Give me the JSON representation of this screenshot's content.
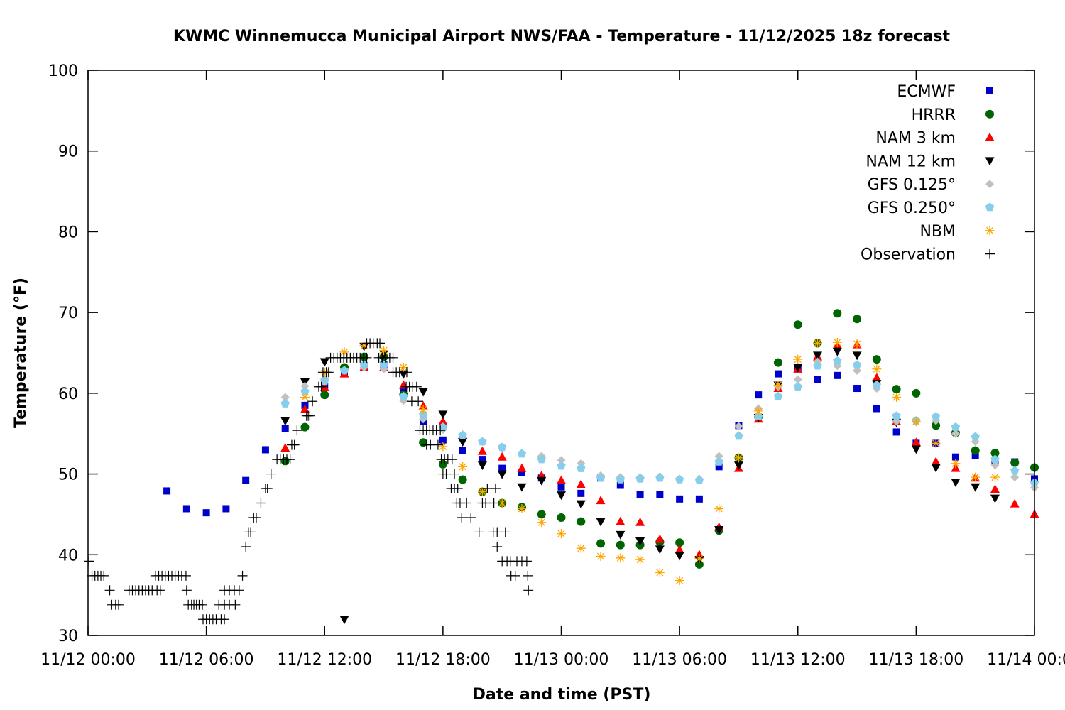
{
  "chart_data": {
    "type": "scatter",
    "title": "KWMC Winnemucca Municipal Airport NWS/FAA - Temperature - 11/12/2025 18z forecast",
    "xlabel": "Date and time (PST)",
    "ylabel": "Temperature (°F)",
    "xlim": [
      "11/12 00:00",
      "11/14 00:00"
    ],
    "ylim": [
      30,
      100
    ],
    "grid": false,
    "legend_position": "top-right",
    "x_ticks": [
      "11/12 00:00",
      "11/12 06:00",
      "11/12 12:00",
      "11/12 18:00",
      "11/13 00:00",
      "11/13 06:00",
      "11/13 12:00",
      "11/13 18:00",
      "11/14 00:00"
    ],
    "y_ticks": [
      "30",
      "40",
      "50",
      "60",
      "70",
      "80",
      "90",
      "100"
    ],
    "series": [
      {
        "name": "ECMWF",
        "marker": "square",
        "color": "#0000cc",
        "start": "11/12 04:00",
        "step_hours": 1,
        "values": [
          47.9,
          45.7,
          45.2,
          45.7,
          49.2,
          53.0,
          55.6,
          58.5,
          60.8,
          62.5,
          63.4,
          63.5,
          60.3,
          56.5,
          54.2,
          52.9,
          51.8,
          50.7,
          50.2,
          49.5,
          48.4,
          47.6,
          49.5,
          48.6,
          47.5,
          47.5,
          46.9,
          46.9,
          50.9,
          56.0,
          59.8,
          62.4,
          63.0,
          61.7,
          62.2,
          60.6,
          58.1,
          55.2,
          53.8,
          53.8,
          52.1,
          52.3,
          51.6,
          51.5,
          49.4
        ]
      },
      {
        "name": "HRRR",
        "marker": "circle",
        "color": "#006400",
        "start": "11/12 10:00",
        "step_hours": 1,
        "values": [
          51.6,
          55.8,
          59.8,
          63.2,
          64.5,
          64.5,
          59.8,
          53.9,
          51.2,
          49.3,
          47.8,
          46.4,
          45.9,
          45.0,
          44.6,
          44.1,
          41.4,
          41.2,
          41.2,
          41.6,
          41.5,
          38.8,
          43.0,
          52.0,
          57.1,
          63.8,
          68.5,
          66.2,
          69.9,
          69.2,
          64.2,
          60.5,
          60.0,
          56.0,
          55.1,
          52.9,
          52.6,
          51.4,
          50.8
        ]
      },
      {
        "name": "NAM 3 km",
        "marker": "triangle-up",
        "color": "#ff0000",
        "start": "11/12 10:00",
        "step_hours": 1,
        "values": [
          53.2,
          58.0,
          60.7,
          62.4,
          63.2,
          63.2,
          61.0,
          58.4,
          56.5,
          54.8,
          52.8,
          52.1,
          50.7,
          49.8,
          49.2,
          48.7,
          46.7,
          44.1,
          44.0,
          41.9,
          40.6,
          40.0,
          43.4,
          50.7,
          56.8,
          60.6,
          63.0,
          64.5,
          65.9,
          66.0,
          61.9,
          56.5,
          53.9,
          51.5,
          50.7,
          49.5,
          48.1,
          46.3,
          45.0
        ]
      },
      {
        "name": "NAM 12 km",
        "marker": "triangle-down",
        "color": "#000000",
        "start": "11/12 10:00",
        "step_hours": 1,
        "values": [
          56.6,
          61.4,
          63.9,
          32.0,
          65.8,
          64.9,
          62.4,
          60.2,
          57.4,
          54.0,
          51.1,
          50.0,
          48.4,
          49.2,
          47.4,
          46.3,
          44.1,
          42.5,
          41.7,
          40.7,
          39.9,
          39.4,
          43.1,
          51.1,
          57.0,
          61.0,
          63.2,
          64.7,
          65.2,
          64.7,
          61.2,
          56.4,
          53.1,
          50.8,
          49.0,
          48.4,
          47.0,
          null,
          null
        ]
      },
      {
        "name": "GFS 0.125°",
        "marker": "diamond",
        "color": "#c0c0c0",
        "start": "11/12 10:00",
        "step_hours": 1,
        "values": [
          59.5,
          60.9,
          61.8,
          62.8,
          63.2,
          63.0,
          59.1,
          56.8,
          55.5,
          54.8,
          54.0,
          53.2,
          52.6,
          52.2,
          51.7,
          51.3,
          49.8,
          49.6,
          49.6,
          49.7,
          49.4,
          49.4,
          52.2,
          55.9,
          58.1,
          60.8,
          61.7,
          63.9,
          63.4,
          62.8,
          60.6,
          56.5,
          56.5,
          56.6,
          55.0,
          54.0,
          51.1,
          49.6,
          48.3
        ]
      },
      {
        "name": "GFS 0.250°",
        "marker": "pentagon",
        "color": "#87ceeb",
        "start": "11/12 10:00",
        "step_hours": 1,
        "values": [
          58.7,
          60.2,
          61.5,
          62.8,
          63.5,
          63.5,
          59.6,
          57.3,
          55.8,
          54.8,
          54.0,
          53.3,
          52.5,
          51.8,
          51.0,
          50.7,
          49.5,
          49.3,
          49.4,
          49.5,
          49.3,
          49.2,
          51.5,
          54.7,
          57.1,
          59.6,
          60.8,
          63.4,
          64.0,
          63.5,
          61.0,
          57.2,
          56.6,
          57.1,
          55.8,
          54.6,
          51.8,
          50.4,
          48.9
        ]
      },
      {
        "name": "NBM",
        "marker": "asterisk",
        "color": "#ffa500",
        "start": "11/12 10:00",
        "step_hours": 1,
        "values": [
          null,
          59.5,
          62.5,
          65.1,
          65.9,
          65.3,
          63.2,
          58.0,
          53.4,
          50.9,
          47.8,
          46.4,
          45.7,
          44.0,
          42.6,
          40.8,
          39.8,
          39.6,
          39.4,
          37.8,
          36.8,
          39.5,
          45.7,
          52.0,
          57.8,
          61.0,
          64.2,
          66.2,
          66.3,
          66.1,
          63.0,
          59.5,
          56.5,
          53.8,
          51.3,
          49.6,
          49.6,
          null,
          null
        ]
      },
      {
        "name": "Observation",
        "marker": "plus",
        "color": "#000000",
        "points": [
          [
            "11/12 00:03",
            39.2
          ],
          [
            "11/12 00:12",
            37.4
          ],
          [
            "11/12 00:21",
            37.4
          ],
          [
            "11/12 00:30",
            37.4
          ],
          [
            "11/12 00:39",
            37.4
          ],
          [
            "11/12 00:48",
            37.4
          ],
          [
            "11/12 01:06",
            35.6
          ],
          [
            "11/12 01:12",
            33.8
          ],
          [
            "11/12 01:24",
            33.8
          ],
          [
            "11/12 01:33",
            33.8
          ],
          [
            "11/12 02:05",
            35.6
          ],
          [
            "11/12 02:15",
            35.6
          ],
          [
            "11/12 02:25",
            35.6
          ],
          [
            "11/12 02:35",
            35.6
          ],
          [
            "11/12 02:45",
            35.6
          ],
          [
            "11/12 02:55",
            35.6
          ],
          [
            "11/12 03:05",
            35.6
          ],
          [
            "11/12 03:15",
            35.6
          ],
          [
            "11/12 03:30",
            35.6
          ],
          [
            "11/12 03:40",
            35.6
          ],
          [
            "11/12 03:25",
            37.4
          ],
          [
            "11/12 03:35",
            37.4
          ],
          [
            "11/12 03:45",
            37.4
          ],
          [
            "11/12 03:55",
            37.4
          ],
          [
            "11/12 04:05",
            37.4
          ],
          [
            "11/12 04:15",
            37.4
          ],
          [
            "11/12 04:25",
            37.4
          ],
          [
            "11/12 04:35",
            37.4
          ],
          [
            "11/12 04:45",
            37.4
          ],
          [
            "11/12 04:58",
            37.4
          ],
          [
            "11/12 05:00",
            35.6
          ],
          [
            "11/12 05:05",
            33.8
          ],
          [
            "11/12 05:15",
            33.8
          ],
          [
            "11/12 05:22",
            33.8
          ],
          [
            "11/12 05:30",
            33.8
          ],
          [
            "11/12 05:38",
            33.8
          ],
          [
            "11/12 05:48",
            33.8
          ],
          [
            "11/12 05:50",
            32.0
          ],
          [
            "11/12 06:00",
            32.0
          ],
          [
            "11/12 06:10",
            32.0
          ],
          [
            "11/12 06:20",
            32.0
          ],
          [
            "11/12 06:30",
            32.0
          ],
          [
            "11/12 06:45",
            32.0
          ],
          [
            "11/12 06:55",
            32.0
          ],
          [
            "11/12 06:38",
            33.8
          ],
          [
            "11/12 06:55",
            33.8
          ],
          [
            "11/12 07:10",
            33.8
          ],
          [
            "11/12 07:28",
            33.8
          ],
          [
            "11/12 06:55",
            35.6
          ],
          [
            "11/12 07:10",
            35.6
          ],
          [
            "11/12 07:25",
            35.6
          ],
          [
            "11/12 07:40",
            35.6
          ],
          [
            "11/12 07:50",
            37.4
          ],
          [
            "11/12 08:00",
            41.0
          ],
          [
            "11/12 08:08",
            42.8
          ],
          [
            "11/12 08:15",
            42.8
          ],
          [
            "11/12 08:24",
            44.6
          ],
          [
            "11/12 08:32",
            44.6
          ],
          [
            "11/12 08:46",
            46.4
          ],
          [
            "11/12 09:00",
            48.2
          ],
          [
            "11/12 09:06",
            48.2
          ],
          [
            "11/12 09:17",
            50.0
          ],
          [
            "11/12 09:35",
            51.8
          ],
          [
            "11/12 09:45",
            51.8
          ],
          [
            "11/12 09:55",
            51.8
          ],
          [
            "11/12 10:05",
            51.8
          ],
          [
            "11/12 10:15",
            51.8
          ],
          [
            "11/12 10:20",
            53.6
          ],
          [
            "11/12 10:28",
            53.6
          ],
          [
            "11/12 10:36",
            55.4
          ],
          [
            "11/12 11:05",
            57.2
          ],
          [
            "11/12 11:10",
            57.2
          ],
          [
            "11/12 11:15",
            57.2
          ],
          [
            "11/12 11:23",
            59.0
          ],
          [
            "11/12 11:42",
            60.8
          ],
          [
            "11/12 11:50",
            60.8
          ],
          [
            "11/12 11:55",
            62.6
          ],
          [
            "11/12 12:05",
            62.6
          ],
          [
            "11/12 12:12",
            62.6
          ],
          [
            "11/12 12:18",
            64.4
          ],
          [
            "11/12 12:28",
            64.4
          ],
          [
            "11/12 12:38",
            64.4
          ],
          [
            "11/12 12:48",
            64.4
          ],
          [
            "11/12 12:58",
            64.4
          ],
          [
            "11/12 13:08",
            64.4
          ],
          [
            "11/12 13:18",
            64.4
          ],
          [
            "11/12 13:28",
            64.4
          ],
          [
            "11/12 13:38",
            64.4
          ],
          [
            "11/12 13:48",
            64.4
          ],
          [
            "11/12 13:58",
            64.4
          ],
          [
            "11/12 14:08",
            64.4
          ],
          [
            "11/12 14:08",
            66.2
          ],
          [
            "11/12 14:18",
            66.2
          ],
          [
            "11/12 14:28",
            66.2
          ],
          [
            "11/12 14:40",
            66.2
          ],
          [
            "11/12 14:48",
            66.2
          ],
          [
            "11/12 14:45",
            64.4
          ],
          [
            "11/12 14:55",
            64.4
          ],
          [
            "11/12 15:05",
            64.4
          ],
          [
            "11/12 15:18",
            64.4
          ],
          [
            "11/12 15:28",
            64.4
          ],
          [
            "11/12 15:28",
            62.6
          ],
          [
            "11/12 15:38",
            62.6
          ],
          [
            "11/12 15:48",
            62.6
          ],
          [
            "11/12 15:58",
            62.6
          ],
          [
            "11/12 16:10",
            62.6
          ],
          [
            "11/12 16:08",
            60.8
          ],
          [
            "11/12 16:18",
            60.8
          ],
          [
            "11/12 16:28",
            60.8
          ],
          [
            "11/12 16:40",
            60.8
          ],
          [
            "11/12 16:25",
            59.0
          ],
          [
            "11/12 16:45",
            59.0
          ],
          [
            "11/12 16:50",
            55.4
          ],
          [
            "11/12 17:00",
            55.4
          ],
          [
            "11/12 17:10",
            55.4
          ],
          [
            "11/12 17:20",
            55.4
          ],
          [
            "11/12 17:30",
            55.4
          ],
          [
            "11/12 17:40",
            55.4
          ],
          [
            "11/12 17:52",
            55.4
          ],
          [
            "11/12 17:10",
            53.6
          ],
          [
            "11/12 17:22",
            53.6
          ],
          [
            "11/12 17:45",
            53.6
          ],
          [
            "11/12 17:55",
            51.8
          ],
          [
            "11/12 18:05",
            51.8
          ],
          [
            "11/12 18:15",
            51.8
          ],
          [
            "11/12 18:28",
            51.8
          ],
          [
            "11/12 18:00",
            50.0
          ],
          [
            "11/12 18:10",
            50.0
          ],
          [
            "11/12 18:35",
            50.0
          ],
          [
            "11/12 18:25",
            48.2
          ],
          [
            "11/12 18:35",
            48.2
          ],
          [
            "11/12 18:45",
            48.2
          ],
          [
            "11/12 18:42",
            46.4
          ],
          [
            "11/12 18:52",
            46.4
          ],
          [
            "11/12 19:12",
            46.4
          ],
          [
            "11/12 20:00",
            46.4
          ],
          [
            "11/12 20:10",
            46.4
          ],
          [
            "11/12 20:35",
            46.4
          ],
          [
            "11/12 18:57",
            44.6
          ],
          [
            "11/12 19:25",
            44.6
          ],
          [
            "11/12 19:50",
            42.8
          ],
          [
            "11/12 20:33",
            42.8
          ],
          [
            "11/12 20:45",
            42.8
          ],
          [
            "11/12 21:10",
            42.8
          ],
          [
            "11/12 20:15",
            48.2
          ],
          [
            "11/12 20:40",
            48.2
          ],
          [
            "11/12 20:45",
            41.0
          ],
          [
            "11/12 21:00",
            39.2
          ],
          [
            "11/12 21:15",
            39.2
          ],
          [
            "11/12 21:25",
            39.2
          ],
          [
            "11/12 21:45",
            39.2
          ],
          [
            "11/12 22:00",
            39.2
          ],
          [
            "11/12 22:15",
            39.2
          ],
          [
            "11/12 21:27",
            37.4
          ],
          [
            "11/12 21:40",
            37.4
          ],
          [
            "11/12 22:18",
            37.4
          ],
          [
            "11/12 22:20",
            35.6
          ]
        ]
      }
    ]
  }
}
